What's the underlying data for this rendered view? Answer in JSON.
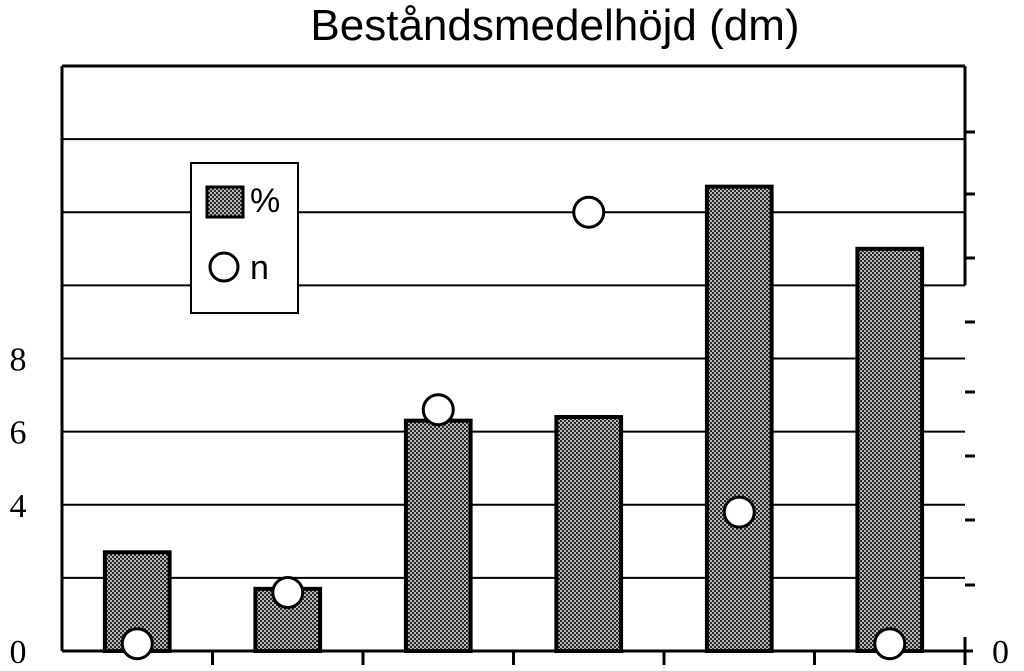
{
  "chart_data": {
    "type": "bar",
    "title": "Beståndsmedelhöjd (dm)",
    "xlabel": "",
    "ylabel": "",
    "categories": [
      "",
      "",
      "",
      "",
      "",
      ""
    ],
    "ylim": [
      0,
      16
    ],
    "left_yticks": [
      "0",
      "4",
      "6",
      "8"
    ],
    "left_ytick_values": [
      0,
      4,
      6,
      8
    ],
    "right_ytick_labels": [
      "0"
    ],
    "grid": true,
    "legend_position": "upper-left",
    "series": [
      {
        "name": "%",
        "kind": "bar",
        "values": [
          2.7,
          1.7,
          6.3,
          6.4,
          12.7,
          11.0
        ]
      },
      {
        "name": "n",
        "kind": "marker",
        "values": [
          0.2,
          1.6,
          6.6,
          12.0,
          3.8,
          0.2
        ]
      }
    ],
    "colors": {
      "bar_fill": "#8c8c8c",
      "bar_stroke": "#000000",
      "marker_fill": "#ffffff"
    }
  }
}
